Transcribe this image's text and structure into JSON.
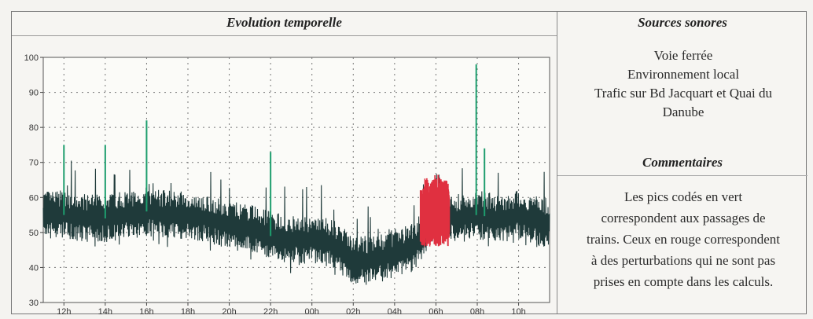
{
  "chart_panel": {
    "title": "Evolution temporelle"
  },
  "chart_data": {
    "type": "line",
    "title": "Evolution temporelle",
    "xlabel": "",
    "ylabel": "",
    "ylim": [
      30,
      100
    ],
    "yticks": [
      30,
      40,
      50,
      60,
      70,
      80,
      90,
      100
    ],
    "xticks": [
      "12h",
      "14h",
      "16h",
      "18h",
      "20h",
      "22h",
      "00h",
      "02h",
      "04h",
      "06h",
      "08h",
      "10h"
    ],
    "grid": true,
    "series": [
      {
        "color": "#1f3a3a",
        "x": [
          "11h",
          "12h",
          "13h",
          "14h",
          "15h",
          "16h",
          "17h",
          "18h",
          "19h",
          "20h",
          "21h",
          "22h",
          "23h",
          "00h",
          "01h",
          "02h",
          "03h",
          "04h",
          "05h",
          "06h",
          "07h",
          "08h",
          "09h",
          "10h",
          "11h"
        ],
        "y": [
          55,
          55,
          54,
          54,
          55,
          56,
          55,
          55,
          54,
          52,
          51,
          49,
          48,
          48,
          47,
          42,
          42,
          44,
          46,
          56,
          54,
          55,
          54,
          55,
          53
        ]
      },
      {
        "color": "#1e9e6e",
        "x": [
          "12h",
          "14h",
          "16h",
          "22h",
          "08h",
          "08h"
        ],
        "y": [
          75,
          75,
          82,
          73,
          98,
          74
        ]
      },
      {
        "color": "#e03040",
        "x": [
          "05h",
          "06h",
          "07h"
        ],
        "y": [
          65,
          67,
          63
        ]
      }
    ]
  },
  "sources": {
    "title": "Sources sonores",
    "items": [
      "Voie ferrée",
      "Environnement local",
      "Trafic sur Bd Jacquart et Quai du",
      "Danube"
    ]
  },
  "comments": {
    "title": "Commentaires",
    "lines": [
      "Les pics codés en vert",
      "correspondent aux passages de",
      "trains. Ceux en rouge correspondent",
      "à des perturbations qui ne sont pas",
      "prises en compte dans les calculs."
    ]
  }
}
